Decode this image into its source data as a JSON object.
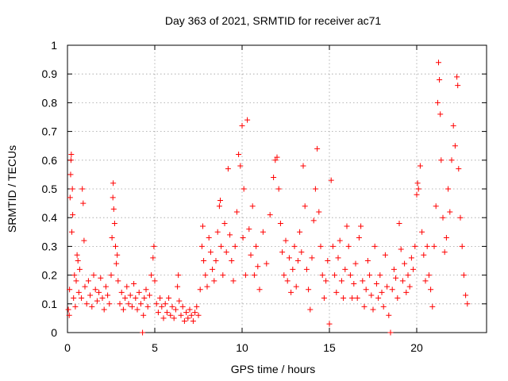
{
  "chart_data": {
    "type": "scatter",
    "title": "Day 363 of 2021, SRMTID for receiver ac71",
    "xlabel": "GPS time / hours",
    "ylabel": "SRMTID / TECUs",
    "xlim": [
      0,
      24
    ],
    "ylim": [
      0,
      1
    ],
    "x_ticks": [
      0,
      5,
      10,
      15,
      20
    ],
    "x_tick_labels": [
      "0",
      "5",
      "10",
      "15",
      "20"
    ],
    "y_ticks": [
      0,
      0.1,
      0.2,
      0.3,
      0.4,
      0.5,
      0.6,
      0.7,
      0.8,
      0.9,
      1
    ],
    "y_tick_labels": [
      "0",
      "0.1",
      "0.2",
      "0.3",
      "0.4",
      "0.5",
      "0.6",
      "0.7",
      "0.8",
      "0.9",
      "1"
    ],
    "grid": true,
    "marker": "+",
    "color": "#ff0000",
    "series": [
      {
        "name": "SRMTID",
        "points": [
          [
            0.05,
            0.08
          ],
          [
            0.1,
            0.06
          ],
          [
            0.12,
            0.15
          ],
          [
            0.15,
            0.47
          ],
          [
            0.18,
            0.55
          ],
          [
            0.2,
            0.6
          ],
          [
            0.22,
            0.62
          ],
          [
            0.25,
            0.35
          ],
          [
            0.28,
            0.5
          ],
          [
            0.3,
            0.41
          ],
          [
            0.35,
            0.12
          ],
          [
            0.4,
            0.2
          ],
          [
            0.45,
            0.09
          ],
          [
            0.5,
            0.18
          ],
          [
            0.55,
            0.27
          ],
          [
            0.6,
            0.25
          ],
          [
            0.65,
            0.14
          ],
          [
            0.7,
            0.22
          ],
          [
            0.8,
            0.12
          ],
          [
            0.85,
            0.5
          ],
          [
            0.9,
            0.45
          ],
          [
            0.95,
            0.32
          ],
          [
            1.0,
            0.16
          ],
          [
            1.1,
            0.1
          ],
          [
            1.2,
            0.18
          ],
          [
            1.3,
            0.13
          ],
          [
            1.4,
            0.09
          ],
          [
            1.5,
            0.2
          ],
          [
            1.6,
            0.15
          ],
          [
            1.7,
            0.11
          ],
          [
            1.8,
            0.14
          ],
          [
            1.9,
            0.19
          ],
          [
            2.0,
            0.12
          ],
          [
            2.1,
            0.08
          ],
          [
            2.2,
            0.16
          ],
          [
            2.3,
            0.13
          ],
          [
            2.4,
            0.1
          ],
          [
            2.5,
            0.2
          ],
          [
            2.55,
            0.33
          ],
          [
            2.6,
            0.47
          ],
          [
            2.62,
            0.52
          ],
          [
            2.65,
            0.43
          ],
          [
            2.7,
            0.38
          ],
          [
            2.75,
            0.3
          ],
          [
            2.8,
            0.24
          ],
          [
            2.85,
            0.27
          ],
          [
            2.9,
            0.18
          ],
          [
            3.0,
            0.1
          ],
          [
            3.1,
            0.14
          ],
          [
            3.2,
            0.08
          ],
          [
            3.3,
            0.12
          ],
          [
            3.4,
            0.16
          ],
          [
            3.5,
            0.1
          ],
          [
            3.6,
            0.13
          ],
          [
            3.7,
            0.09
          ],
          [
            3.8,
            0.17
          ],
          [
            3.9,
            0.12
          ],
          [
            4.0,
            0.08
          ],
          [
            4.1,
            0.14
          ],
          [
            4.2,
            0.1
          ],
          [
            4.3,
            0.0
          ],
          [
            4.35,
            0.06
          ],
          [
            4.4,
            0.12
          ],
          [
            4.5,
            0.15
          ],
          [
            4.6,
            0.09
          ],
          [
            4.7,
            0.13
          ],
          [
            4.8,
            0.2
          ],
          [
            4.9,
            0.26
          ],
          [
            4.95,
            0.3
          ],
          [
            5.0,
            0.18
          ],
          [
            5.1,
            0.1
          ],
          [
            5.2,
            0.07
          ],
          [
            5.3,
            0.12
          ],
          [
            5.4,
            0.09
          ],
          [
            5.5,
            0.05
          ],
          [
            5.6,
            0.1
          ],
          [
            5.7,
            0.07
          ],
          [
            5.8,
            0.12
          ],
          [
            5.9,
            0.06
          ],
          [
            6.0,
            0.09
          ],
          [
            6.1,
            0.05
          ],
          [
            6.2,
            0.08
          ],
          [
            6.3,
            0.16
          ],
          [
            6.35,
            0.2
          ],
          [
            6.4,
            0.11
          ],
          [
            6.5,
            0.06
          ],
          [
            6.6,
            0.09
          ],
          [
            6.7,
            0.04
          ],
          [
            6.8,
            0.07
          ],
          [
            6.9,
            0.05
          ],
          [
            7.0,
            0.08
          ],
          [
            7.1,
            0.06
          ],
          [
            7.2,
            0.04
          ],
          [
            7.3,
            0.07
          ],
          [
            7.4,
            0.09
          ],
          [
            7.5,
            0.06
          ],
          [
            7.6,
            0.15
          ],
          [
            7.7,
            0.3
          ],
          [
            7.75,
            0.37
          ],
          [
            7.8,
            0.25
          ],
          [
            7.9,
            0.2
          ],
          [
            8.0,
            0.16
          ],
          [
            8.1,
            0.33
          ],
          [
            8.2,
            0.28
          ],
          [
            8.3,
            0.22
          ],
          [
            8.4,
            0.18
          ],
          [
            8.5,
            0.25
          ],
          [
            8.6,
            0.35
          ],
          [
            8.7,
            0.44
          ],
          [
            8.75,
            0.46
          ],
          [
            8.8,
            0.3
          ],
          [
            8.9,
            0.2
          ],
          [
            9.0,
            0.38
          ],
          [
            9.1,
            0.28
          ],
          [
            9.2,
            0.57
          ],
          [
            9.3,
            0.34
          ],
          [
            9.4,
            0.25
          ],
          [
            9.5,
            0.18
          ],
          [
            9.6,
            0.3
          ],
          [
            9.7,
            0.42
          ],
          [
            9.8,
            0.62
          ],
          [
            9.9,
            0.58
          ],
          [
            10.0,
            0.72
          ],
          [
            10.05,
            0.33
          ],
          [
            10.1,
            0.5
          ],
          [
            10.2,
            0.2
          ],
          [
            10.3,
            0.74
          ],
          [
            10.4,
            0.36
          ],
          [
            10.5,
            0.27
          ],
          [
            10.6,
            0.44
          ],
          [
            10.7,
            0.2
          ],
          [
            10.8,
            0.3
          ],
          [
            10.9,
            0.23
          ],
          [
            11.0,
            0.15
          ],
          [
            11.2,
            0.35
          ],
          [
            11.4,
            0.24
          ],
          [
            11.6,
            0.41
          ],
          [
            11.8,
            0.54
          ],
          [
            11.9,
            0.6
          ],
          [
            12.0,
            0.61
          ],
          [
            12.1,
            0.5
          ],
          [
            12.2,
            0.38
          ],
          [
            12.3,
            0.28
          ],
          [
            12.4,
            0.2
          ],
          [
            12.5,
            0.32
          ],
          [
            12.6,
            0.18
          ],
          [
            12.7,
            0.26
          ],
          [
            12.8,
            0.14
          ],
          [
            12.9,
            0.22
          ],
          [
            13.0,
            0.3
          ],
          [
            13.1,
            0.16
          ],
          [
            13.2,
            0.25
          ],
          [
            13.3,
            0.35
          ],
          [
            13.4,
            0.28
          ],
          [
            13.5,
            0.58
          ],
          [
            13.6,
            0.44
          ],
          [
            13.7,
            0.22
          ],
          [
            13.8,
            0.15
          ],
          [
            13.9,
            0.08
          ],
          [
            14.0,
            0.26
          ],
          [
            14.1,
            0.39
          ],
          [
            14.2,
            0.5
          ],
          [
            14.3,
            0.64
          ],
          [
            14.4,
            0.42
          ],
          [
            14.5,
            0.3
          ],
          [
            14.6,
            0.2
          ],
          [
            14.7,
            0.12
          ],
          [
            14.8,
            0.18
          ],
          [
            14.9,
            0.25
          ],
          [
            15.0,
            0.03
          ],
          [
            15.1,
            0.53
          ],
          [
            15.2,
            0.3
          ],
          [
            15.3,
            0.2
          ],
          [
            15.4,
            0.14
          ],
          [
            15.5,
            0.26
          ],
          [
            15.6,
            0.32
          ],
          [
            15.7,
            0.18
          ],
          [
            15.8,
            0.12
          ],
          [
            15.9,
            0.22
          ],
          [
            16.0,
            0.37
          ],
          [
            16.1,
            0.3
          ],
          [
            16.2,
            0.2
          ],
          [
            16.3,
            0.12
          ],
          [
            16.4,
            0.17
          ],
          [
            16.5,
            0.24
          ],
          [
            16.6,
            0.12
          ],
          [
            16.7,
            0.33
          ],
          [
            16.8,
            0.37
          ],
          [
            16.9,
            0.18
          ],
          [
            17.0,
            0.09
          ],
          [
            17.1,
            0.15
          ],
          [
            17.2,
            0.25
          ],
          [
            17.3,
            0.2
          ],
          [
            17.4,
            0.13
          ],
          [
            17.5,
            0.08
          ],
          [
            17.6,
            0.3
          ],
          [
            17.7,
            0.17
          ],
          [
            17.8,
            0.12
          ],
          [
            17.9,
            0.2
          ],
          [
            18.0,
            0.14
          ],
          [
            18.1,
            0.09
          ],
          [
            18.2,
            0.27
          ],
          [
            18.3,
            0.16
          ],
          [
            18.4,
            0.06
          ],
          [
            18.5,
            0.0
          ],
          [
            18.6,
            0.15
          ],
          [
            18.7,
            0.22
          ],
          [
            18.8,
            0.19
          ],
          [
            18.9,
            0.12
          ],
          [
            19.0,
            0.38
          ],
          [
            19.1,
            0.29
          ],
          [
            19.2,
            0.18
          ],
          [
            19.3,
            0.24
          ],
          [
            19.4,
            0.14
          ],
          [
            19.5,
            0.2
          ],
          [
            19.6,
            0.16
          ],
          [
            19.7,
            0.26
          ],
          [
            19.8,
            0.22
          ],
          [
            19.9,
            0.3
          ],
          [
            20.0,
            0.48
          ],
          [
            20.05,
            0.52
          ],
          [
            20.1,
            0.5
          ],
          [
            20.2,
            0.58
          ],
          [
            20.3,
            0.35
          ],
          [
            20.4,
            0.27
          ],
          [
            20.5,
            0.18
          ],
          [
            20.6,
            0.3
          ],
          [
            20.7,
            0.2
          ],
          [
            20.8,
            0.15
          ],
          [
            20.9,
            0.09
          ],
          [
            21.0,
            0.3
          ],
          [
            21.1,
            0.44
          ],
          [
            21.2,
            0.8
          ],
          [
            21.25,
            0.94
          ],
          [
            21.3,
            0.88
          ],
          [
            21.35,
            0.76
          ],
          [
            21.4,
            0.6
          ],
          [
            21.5,
            0.4
          ],
          [
            21.6,
            0.28
          ],
          [
            21.7,
            0.33
          ],
          [
            21.8,
            0.5
          ],
          [
            21.9,
            0.42
          ],
          [
            22.0,
            0.6
          ],
          [
            22.1,
            0.72
          ],
          [
            22.2,
            0.65
          ],
          [
            22.3,
            0.89
          ],
          [
            22.35,
            0.86
          ],
          [
            22.4,
            0.57
          ],
          [
            22.5,
            0.4
          ],
          [
            22.6,
            0.3
          ],
          [
            22.7,
            0.2
          ],
          [
            22.8,
            0.13
          ],
          [
            22.9,
            0.1
          ]
        ]
      }
    ]
  }
}
